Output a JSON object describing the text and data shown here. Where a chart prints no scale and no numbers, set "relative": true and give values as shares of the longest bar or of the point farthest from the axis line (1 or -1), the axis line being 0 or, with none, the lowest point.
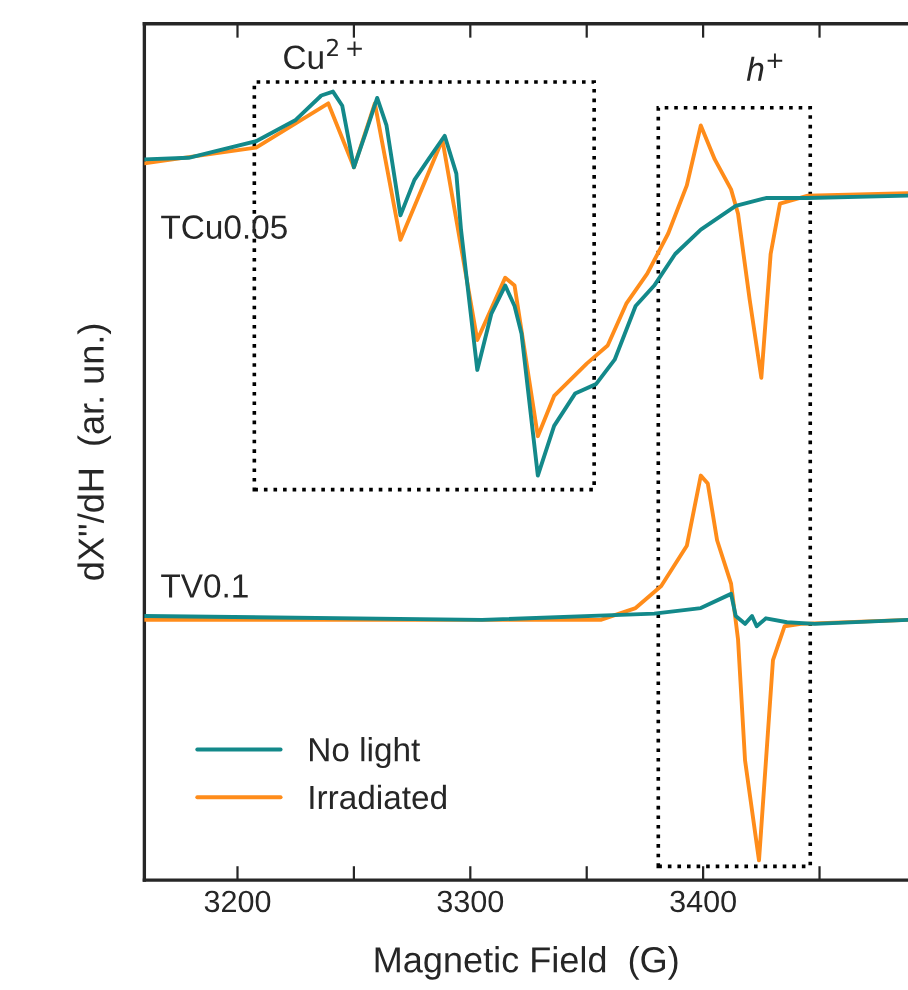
{
  "chart_data": {
    "type": "line",
    "relative": true,
    "xlabel": "Magnetic Field  (G)",
    "ylabel": "dX''/dH  (ar. un.)",
    "xlim": [
      3160,
      3488
    ],
    "xticks": [
      3200,
      {
        "value": 3250,
        "label": null
      },
      3300,
      {
        "value": 3350,
        "label": null
      },
      3400,
      {
        "value": 3450,
        "label": null
      }
    ],
    "legend": "bottom left",
    "grid": false,
    "marker": "none",
    "line_style": "solid",
    "series": [
      {
        "name": "No light",
        "color": "#13898a",
        "x": [
          3160,
          3179,
          3208,
          3225,
          3236,
          3241,
          3245,
          3250,
          3255,
          3260,
          3264,
          3270,
          3276,
          3282,
          3289,
          3294,
          3296,
          3303,
          3309,
          3315,
          3319,
          3322,
          3329,
          3336,
          3345,
          3354,
          3362,
          3371,
          3379,
          3388,
          3399,
          3414,
          3427,
          3445,
          3488
        ],
        "values": [
          0.914,
          0.916,
          0.937,
          0.964,
          0.995,
          1.0,
          0.982,
          0.904,
          0.947,
          0.992,
          0.957,
          0.843,
          0.888,
          0.914,
          0.944,
          0.896,
          0.825,
          0.647,
          0.718,
          0.754,
          0.728,
          0.693,
          0.513,
          0.576,
          0.617,
          0.629,
          0.66,
          0.728,
          0.754,
          0.794,
          0.825,
          0.855,
          0.865,
          0.865,
          0.868
        ]
      },
      {
        "name": "Irradiated",
        "color": "#ff8c1a",
        "x": [
          3160,
          3208,
          3239,
          3250,
          3259,
          3270,
          3288,
          3303,
          3315,
          3319,
          3329,
          3336,
          3350,
          3359,
          3367,
          3376,
          3385,
          3393,
          3399,
          3405,
          3412,
          3415,
          3420,
          3425,
          3429,
          3433,
          3445,
          3488
        ],
        "values": [
          0.909,
          0.929,
          0.985,
          0.904,
          0.985,
          0.812,
          0.939,
          0.685,
          0.764,
          0.754,
          0.563,
          0.614,
          0.655,
          0.678,
          0.731,
          0.769,
          0.82,
          0.881,
          0.957,
          0.914,
          0.876,
          0.845,
          0.736,
          0.637,
          0.794,
          0.858,
          0.868,
          0.871
        ]
      },
      {
        "color": "#13898a",
        "x": [
          3160,
          3305,
          3379,
          3399,
          3412,
          3414,
          3418,
          3421,
          3423,
          3427,
          3436,
          3448,
          3488
        ],
        "values": [
          0.335,
          0.33,
          0.338,
          0.345,
          0.363,
          0.335,
          0.325,
          0.335,
          0.322,
          0.332,
          0.327,
          0.325,
          0.33
        ]
      },
      {
        "color": "#ff8c1a",
        "x": [
          3160,
          3356,
          3371,
          3382,
          3393,
          3399,
          3402,
          3406,
          3412,
          3415,
          3418,
          3424,
          3427,
          3430,
          3435,
          3442,
          3488
        ],
        "values": [
          0.33,
          0.33,
          0.345,
          0.373,
          0.424,
          0.513,
          0.503,
          0.431,
          0.376,
          0.305,
          0.152,
          0.025,
          0.152,
          0.279,
          0.322,
          0.325,
          0.33
        ]
      }
    ],
    "annotations": [
      "Cu$^{2+}$",
      "h$^{+}$",
      "TCu0.05",
      "TV0.1"
    ]
  }
}
